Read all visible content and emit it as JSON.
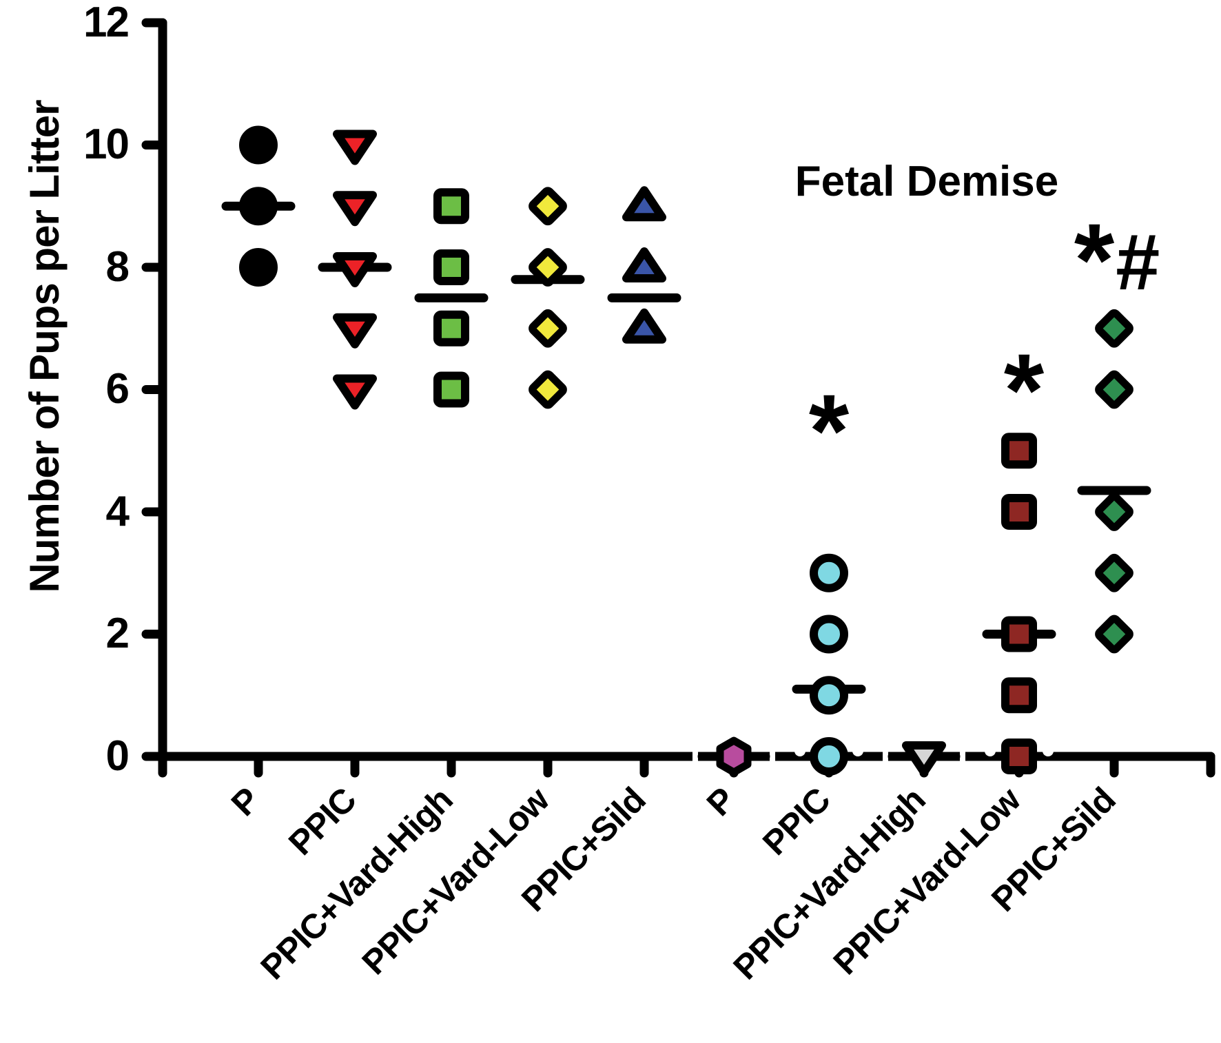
{
  "title": "Fetal Demise",
  "y_axis": {
    "label": "Number of Pups per Litter",
    "tick_labels": [
      "12",
      "10",
      "8",
      "6",
      "4",
      "2",
      "0"
    ],
    "tick_values": [
      12,
      10,
      8,
      6,
      4,
      2,
      0
    ]
  },
  "chart_data": {
    "type": "scatter",
    "title": "Fetal Demise",
    "xlabel": "",
    "ylabel": "Number of Pups per Litter",
    "ylim": [
      0,
      12
    ],
    "y_ticks": [
      0,
      2,
      4,
      6,
      8,
      10,
      12
    ],
    "grid": false,
    "legend": false,
    "description": "Dot plot of litter sizes per treatment group; left five columns are live pups, right five columns are fetal demise counts. Horizontal bars mark group central value.",
    "groups": [
      {
        "label": "P",
        "section": "live",
        "marker": "circle",
        "color": "#000000",
        "values": [
          10,
          9,
          8
        ],
        "center_line": 9
      },
      {
        "label": "PPIC",
        "section": "live",
        "marker": "triangle-down",
        "color": "#EC2227",
        "values": [
          10,
          9,
          8,
          7,
          6
        ],
        "center_line": 8
      },
      {
        "label": "PPIC+Vard-High",
        "section": "live",
        "marker": "square",
        "color": "#6CBE45",
        "values": [
          9,
          8,
          7,
          6
        ],
        "center_line": 7.5
      },
      {
        "label": "PPIC+Vard-Low",
        "section": "live",
        "marker": "diamond",
        "color": "#F1E93C",
        "values": [
          9,
          8,
          7,
          6
        ],
        "center_line": 7.8
      },
      {
        "label": "PPIC+Sild",
        "section": "live",
        "marker": "triangle-up",
        "color": "#3A55A8",
        "values": [
          9,
          8,
          7
        ],
        "center_line": 7.5
      },
      {
        "label": "P",
        "section": "fetal-demise",
        "marker": "hexagon",
        "color": "#B84C9E",
        "values": [
          0
        ],
        "center_line": 0
      },
      {
        "label": "PPIC",
        "section": "fetal-demise",
        "marker": "circle",
        "color": "#7FD8E3",
        "values": [
          3,
          2,
          1,
          0
        ],
        "center_line": 1.1,
        "annotation": "*",
        "annotation_value": 5.7
      },
      {
        "label": "PPIC+Vard-High",
        "section": "fetal-demise",
        "marker": "triangle-down",
        "color": "#D5D5D5",
        "values": [
          0
        ],
        "center_line": 0
      },
      {
        "label": "PPIC+Vard-Low",
        "section": "fetal-demise",
        "marker": "square",
        "color": "#8E2723",
        "values": [
          5,
          4,
          2,
          1,
          0
        ],
        "center_line": 2,
        "annotation": "*",
        "annotation_value": 6.4
      },
      {
        "label": "PPIC+Sild",
        "section": "fetal-demise",
        "marker": "diamond",
        "color": "#2E8F50",
        "values": [
          7,
          6,
          4,
          3,
          2
        ],
        "center_line": 4.35,
        "annotation": "*#",
        "annotation_chars": [
          "*",
          "#"
        ],
        "annotation_value": 8.4
      }
    ]
  }
}
